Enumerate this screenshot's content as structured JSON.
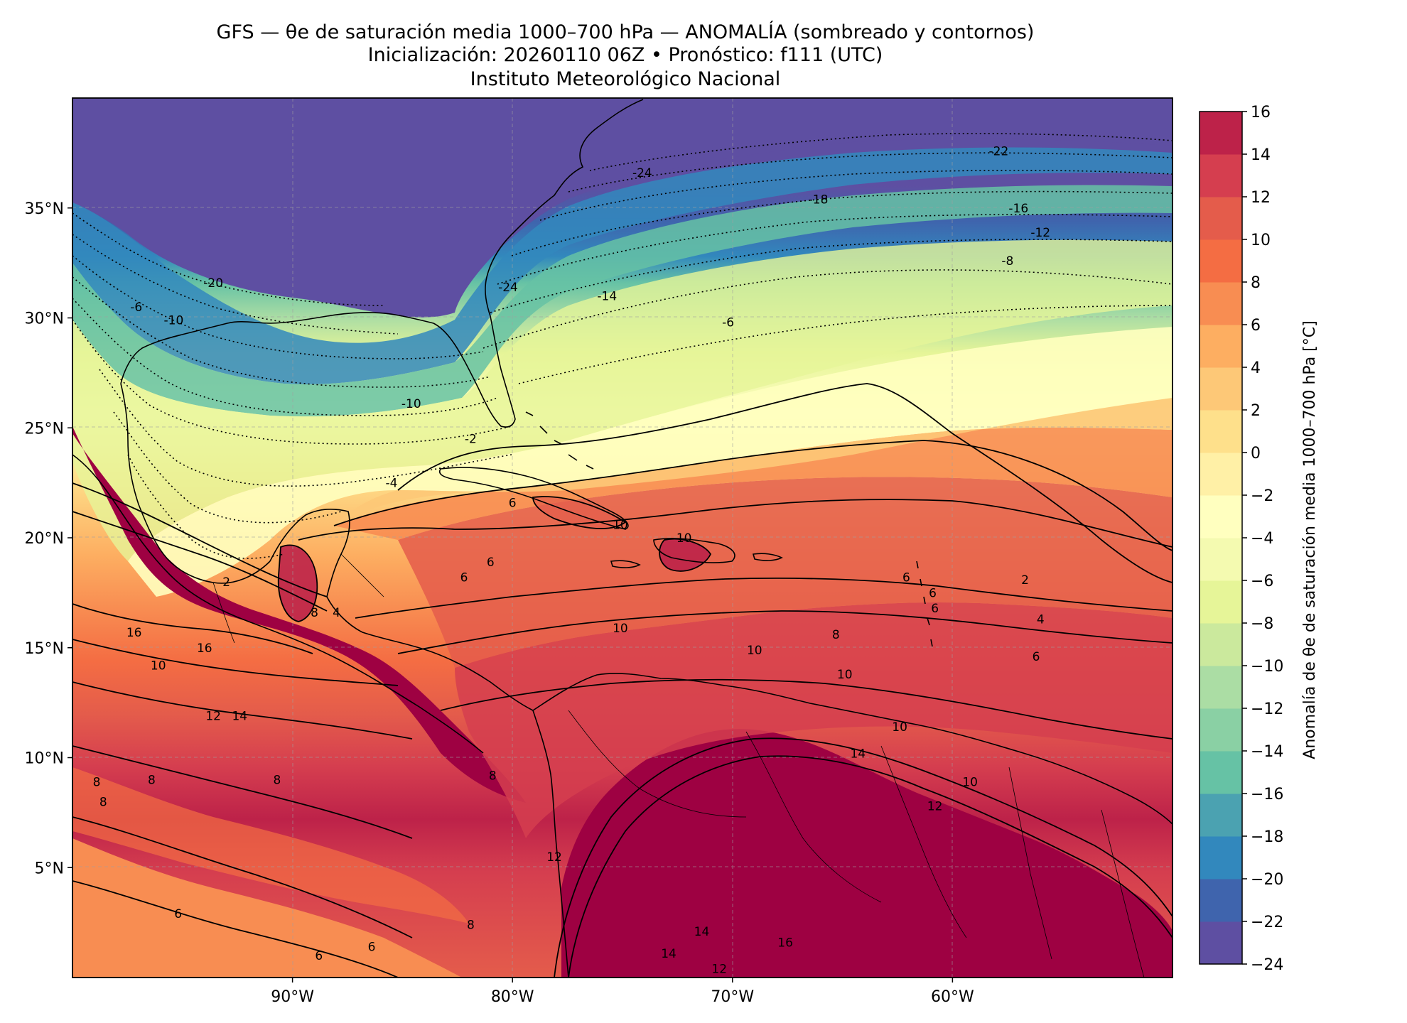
{
  "header": {
    "title_line1": "GFS — θe de saturación media 1000–700 hPa — ANOMALÍA (sombreado y contornos)",
    "title_line2": "Inicialización: 20260110 06Z   •   Pronóstico: f111 (UTC)",
    "title_line3": "Instituto Meteorológico Nacional"
  },
  "map": {
    "extent_lon": [
      -100,
      -50
    ],
    "extent_lat": [
      0,
      40
    ],
    "lat_ticks": [
      {
        "value": 35,
        "label": "35°N"
      },
      {
        "value": 30,
        "label": "30°N"
      },
      {
        "value": 25,
        "label": "25°N"
      },
      {
        "value": 20,
        "label": "20°N"
      },
      {
        "value": 15,
        "label": "15°N"
      },
      {
        "value": 10,
        "label": "10°N"
      },
      {
        "value": 5,
        "label": "5°N"
      }
    ],
    "lon_ticks": [
      {
        "value": -90,
        "label": "90°W"
      },
      {
        "value": -80,
        "label": "80°W"
      },
      {
        "value": -70,
        "label": "70°W"
      },
      {
        "value": -60,
        "label": "60°W"
      }
    ],
    "gridlines": true,
    "contour_labels": [
      {
        "text": "-22",
        "lon": -57.9,
        "lat": 37.6
      },
      {
        "text": "-24",
        "lon": -74.1,
        "lat": 36.6
      },
      {
        "text": "-18",
        "lon": -66.1,
        "lat": 35.4
      },
      {
        "text": "-16",
        "lon": -57.0,
        "lat": 35.0
      },
      {
        "text": "-12",
        "lon": -56.0,
        "lat": 33.9
      },
      {
        "text": "-8",
        "lon": -57.5,
        "lat": 32.6
      },
      {
        "text": "-20",
        "lon": -93.6,
        "lat": 31.6
      },
      {
        "text": "-24",
        "lon": -80.2,
        "lat": 31.4
      },
      {
        "text": "-14",
        "lon": -75.7,
        "lat": 31.0
      },
      {
        "text": "-6",
        "lon": -97.1,
        "lat": 30.5
      },
      {
        "text": "-10",
        "lon": -95.4,
        "lat": 29.9
      },
      {
        "text": "-6",
        "lon": -70.2,
        "lat": 29.8
      },
      {
        "text": "-10",
        "lon": -84.6,
        "lat": 26.1
      },
      {
        "text": "-2",
        "lon": -81.9,
        "lat": 24.5
      },
      {
        "text": "-4",
        "lon": -85.5,
        "lat": 22.5
      },
      {
        "text": "6",
        "lon": -80.0,
        "lat": 21.6
      },
      {
        "text": "10",
        "lon": -75.1,
        "lat": 20.6
      },
      {
        "text": "10",
        "lon": -72.2,
        "lat": 20.0
      },
      {
        "text": "2",
        "lon": -93.0,
        "lat": 18.0
      },
      {
        "text": "6",
        "lon": -81.0,
        "lat": 18.9
      },
      {
        "text": "6",
        "lon": -82.2,
        "lat": 18.2
      },
      {
        "text": "4",
        "lon": -88.0,
        "lat": 16.6
      },
      {
        "text": "8",
        "lon": -89.0,
        "lat": 16.6
      },
      {
        "text": "6",
        "lon": -62.1,
        "lat": 18.2
      },
      {
        "text": "2",
        "lon": -56.7,
        "lat": 18.1
      },
      {
        "text": "6",
        "lon": -60.9,
        "lat": 17.5
      },
      {
        "text": "4",
        "lon": -56.0,
        "lat": 16.3
      },
      {
        "text": "16",
        "lon": -97.2,
        "lat": 15.7
      },
      {
        "text": "16",
        "lon": -94.0,
        "lat": 15.0
      },
      {
        "text": "10",
        "lon": -75.1,
        "lat": 15.9
      },
      {
        "text": "8",
        "lon": -65.3,
        "lat": 15.6
      },
      {
        "text": "10",
        "lon": -69.0,
        "lat": 14.9
      },
      {
        "text": "10",
        "lon": -96.1,
        "lat": 14.2
      },
      {
        "text": "6",
        "lon": -56.2,
        "lat": 14.6
      },
      {
        "text": "10",
        "lon": -64.9,
        "lat": 13.8
      },
      {
        "text": "12",
        "lon": -93.6,
        "lat": 11.9
      },
      {
        "text": "14",
        "lon": -92.4,
        "lat": 11.9
      },
      {
        "text": "10",
        "lon": -62.4,
        "lat": 11.4
      },
      {
        "text": "8",
        "lon": -80.9,
        "lat": 9.2
      },
      {
        "text": "10",
        "lon": -59.2,
        "lat": 8.9
      },
      {
        "text": "8",
        "lon": -98.9,
        "lat": 8.9
      },
      {
        "text": "8",
        "lon": -96.4,
        "lat": 9.0
      },
      {
        "text": "8",
        "lon": -90.7,
        "lat": 9.0
      },
      {
        "text": "8",
        "lon": -98.6,
        "lat": 8.0
      },
      {
        "text": "12",
        "lon": -78.1,
        "lat": 5.5
      },
      {
        "text": "6",
        "lon": -95.2,
        "lat": 2.9
      },
      {
        "text": "8",
        "lon": -81.9,
        "lat": 2.4
      },
      {
        "text": "14",
        "lon": -71.4,
        "lat": 2.1
      },
      {
        "text": "16",
        "lon": -67.6,
        "lat": 1.6
      },
      {
        "text": "6",
        "lon": -86.4,
        "lat": 1.4
      },
      {
        "text": "6",
        "lon": -88.8,
        "lat": 1.0
      },
      {
        "text": "14",
        "lon": -72.9,
        "lat": 1.1
      },
      {
        "text": "12",
        "lon": -70.6,
        "lat": 0.4
      },
      {
        "text": "12",
        "lon": -60.8,
        "lat": 7.8
      },
      {
        "text": "14",
        "lon": -64.3,
        "lat": 10.2
      },
      {
        "text": "6",
        "lon": -60.8,
        "lat": 16.8
      }
    ]
  },
  "colorbar": {
    "label": "Anomalía de θe de saturación media 1000–700 hPa [°C]",
    "levels": [
      -24,
      -22,
      -20,
      -18,
      -16,
      -14,
      -12,
      -10,
      -8,
      -6,
      -4,
      -2,
      0,
      2,
      4,
      6,
      8,
      10,
      12,
      14,
      16
    ],
    "tick_labels": [
      "−24",
      "−22",
      "−20",
      "−18",
      "−16",
      "−14",
      "−12",
      "−10",
      "−8",
      "−6",
      "−4",
      "−2",
      "0",
      "2",
      "4",
      "6",
      "8",
      "10",
      "12",
      "14",
      "16"
    ],
    "colors": [
      "#5e4fa2",
      "#3f64ad",
      "#3288bd",
      "#4ba2b1",
      "#66c2a5",
      "#8ad0a4",
      "#abdda4",
      "#cbe99d",
      "#e6f598",
      "#f4fab0",
      "#ffffbf",
      "#fff0a6",
      "#fee08b",
      "#fdc877",
      "#fdae61",
      "#f88d52",
      "#f46d43",
      "#e45c4b",
      "#d53e4f",
      "#bd2249",
      "#9e0142"
    ]
  }
}
